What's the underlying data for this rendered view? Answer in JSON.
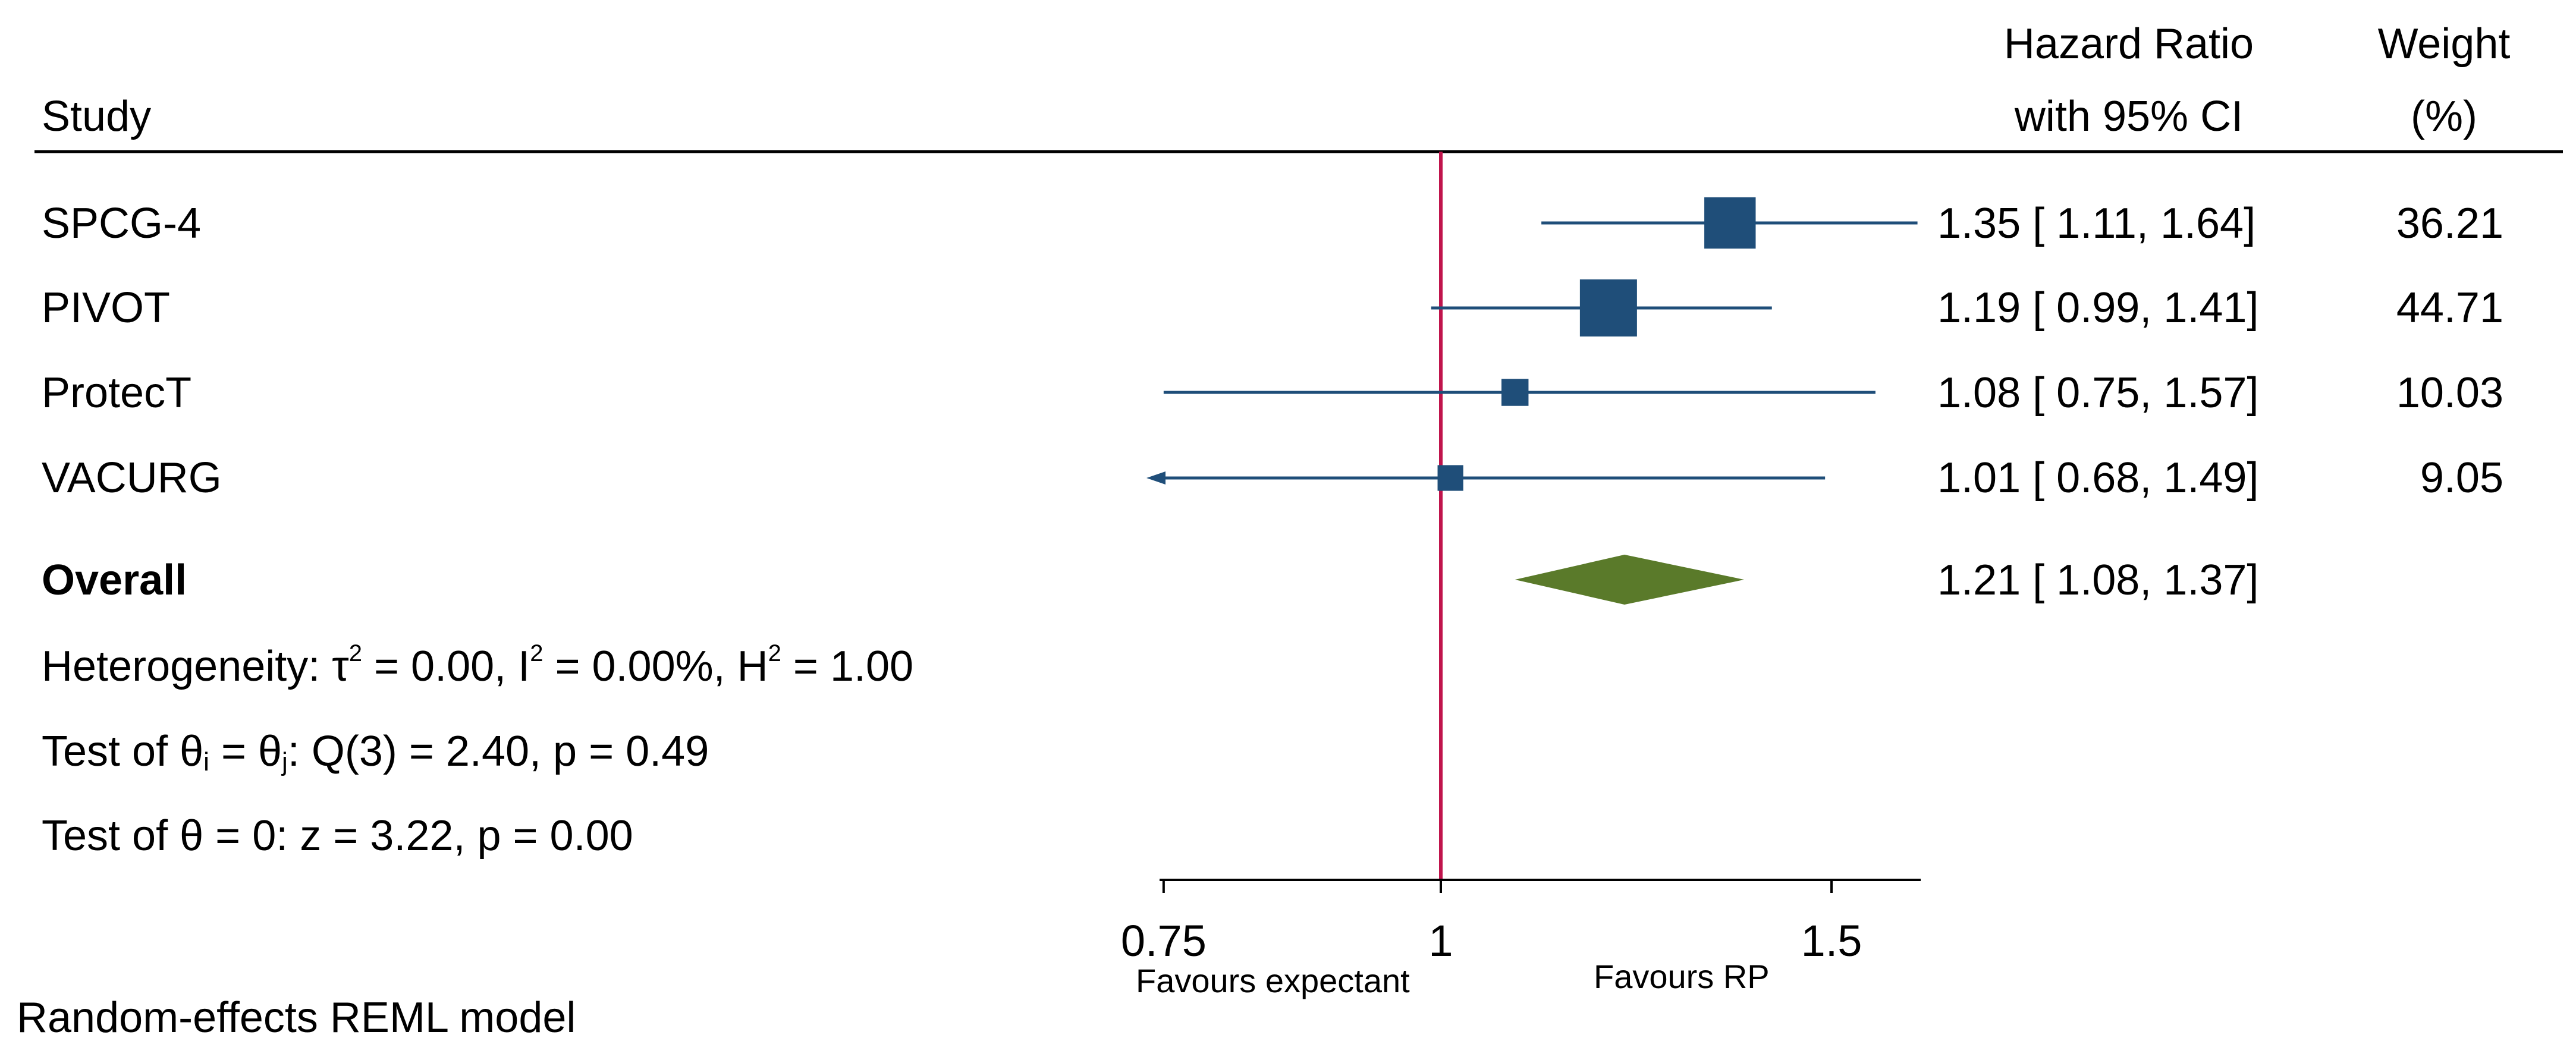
{
  "header": {
    "study": "Study",
    "hr_line1": "Hazard Ratio",
    "hr_line2": "with 95% CI",
    "weight_line1": "Weight",
    "weight_line2": "(%)"
  },
  "overall": {
    "label": "Overall",
    "hr_text": "1.21 [ 1.08,  1.37]"
  },
  "stats": {
    "heterogeneity_prefix": "Heterogeneity: τ",
    "tau_sup": "2",
    "tau_value": " = 0.00, I",
    "i_sup": "2",
    "i_value": " = 0.00%, H",
    "h_sup": "2",
    "h_value": " = 1.00",
    "test1_prefix": "Test of θ",
    "test1_sub_i": "i",
    "test1_mid": " = θ",
    "test1_sub_j": "j",
    "test1_rest": ": Q(3) = 2.40, p = 0.49",
    "test2": "Test of θ = 0: z = 3.22, p = 0.00"
  },
  "footer": {
    "model": "Random-effects REML model",
    "favours_left": "Favours expectant",
    "favours_right": "Favours RP"
  },
  "colors": {
    "marker": "#1f4e79",
    "diamond": "#5a7a2a",
    "null_line": "#c0144c",
    "axis": "#000000"
  },
  "chart_data": {
    "type": "forest",
    "title": "",
    "xlabel": "",
    "x_scale": "log",
    "xlim": [
      0.75,
      1.6
    ],
    "null_value": 1,
    "xticks": [
      0.75,
      1,
      1.5
    ],
    "xtick_labels": [
      "0.75",
      "1",
      "1.5"
    ],
    "studies": [
      {
        "name": "SPCG-4",
        "hr": 1.35,
        "ci_low": 1.11,
        "ci_high": 1.64,
        "weight": 36.21,
        "hr_text": "1.35 [ 1.11,  1.64]",
        "weight_text": "36.21",
        "arrow_left": false
      },
      {
        "name": "PIVOT",
        "hr": 1.19,
        "ci_low": 0.99,
        "ci_high": 1.41,
        "weight": 44.71,
        "hr_text": "1.19 [ 0.99,  1.41]",
        "weight_text": "44.71",
        "arrow_left": false
      },
      {
        "name": "ProtecT",
        "hr": 1.08,
        "ci_low": 0.75,
        "ci_high": 1.57,
        "weight": 10.03,
        "hr_text": "1.08 [ 0.75,  1.57]",
        "weight_text": "10.03",
        "arrow_left": false
      },
      {
        "name": "VACURG",
        "hr": 1.01,
        "ci_low": 0.68,
        "ci_high": 1.49,
        "weight": 9.05,
        "hr_text": "1.01 [ 0.68,  1.49]",
        "weight_text": "9.05",
        "arrow_left": true
      }
    ],
    "overall": {
      "hr": 1.21,
      "ci_low": 1.08,
      "ci_high": 1.37
    }
  }
}
